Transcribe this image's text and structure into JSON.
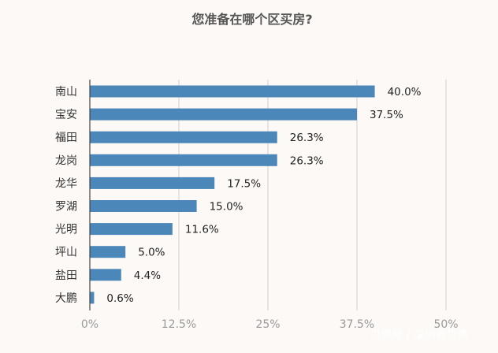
{
  "chart_data": {
    "type": "bar",
    "orientation": "horizontal",
    "title": "您准备在哪个区买房?",
    "categories": [
      "南山",
      "宝安",
      "福田",
      "龙岗",
      "龙华",
      "罗湖",
      "光明",
      "坪山",
      "盐田",
      "大鹏"
    ],
    "values": [
      40.0,
      37.5,
      26.3,
      26.3,
      17.5,
      15.0,
      11.6,
      5.0,
      4.4,
      0.6
    ],
    "value_labels": [
      "40.0%",
      "37.5%",
      "26.3%",
      "26.3%",
      "17.5%",
      "15.0%",
      "11.6%",
      "5.0%",
      "4.4%",
      "0.6%"
    ],
    "xlim": [
      0,
      50
    ],
    "xticks": [
      0,
      12.5,
      25,
      37.5,
      50
    ],
    "xtick_labels": [
      "0%",
      "12.5%",
      "25%",
      "37.5%",
      "50%"
    ],
    "grid": true,
    "bar_color": "#4b87b8"
  },
  "watermark": "贝壳号 / 深圳有贝壳"
}
